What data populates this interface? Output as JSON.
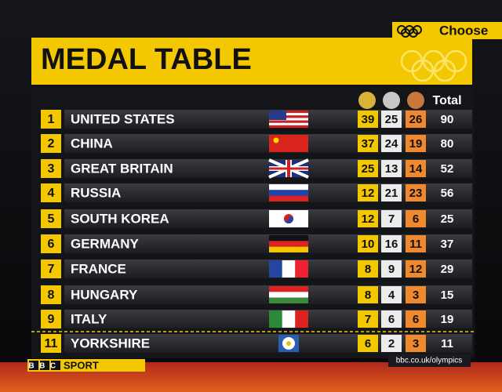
{
  "header": {
    "title": "MEDAL TABLE",
    "total_label": "Total",
    "choose": "Choose"
  },
  "table": {
    "rows": [
      {
        "rank": 1,
        "country": "UNITED STATES",
        "gold": 39,
        "silver": 25,
        "bronze": 26,
        "total": 90
      },
      {
        "rank": 2,
        "country": "CHINA",
        "gold": 37,
        "silver": 24,
        "bronze": 19,
        "total": 80
      },
      {
        "rank": 3,
        "country": "GREAT BRITAIN",
        "gold": 25,
        "silver": 13,
        "bronze": 14,
        "total": 52
      },
      {
        "rank": 4,
        "country": "RUSSIA",
        "gold": 12,
        "silver": 21,
        "bronze": 23,
        "total": 56
      },
      {
        "rank": 5,
        "country": "SOUTH KOREA",
        "gold": 12,
        "silver": 7,
        "bronze": 6,
        "total": 25
      },
      {
        "rank": 6,
        "country": "GERMANY",
        "gold": 10,
        "silver": 16,
        "bronze": 11,
        "total": 37
      },
      {
        "rank": 7,
        "country": "FRANCE",
        "gold": 8,
        "silver": 9,
        "bronze": 12,
        "total": 29
      },
      {
        "rank": 8,
        "country": "HUNGARY",
        "gold": 8,
        "silver": 4,
        "bronze": 3,
        "total": 15
      },
      {
        "rank": 9,
        "country": "ITALY",
        "gold": 7,
        "silver": 6,
        "bronze": 6,
        "total": 19
      },
      {
        "rank": 11,
        "country": "YORKSHIRE",
        "gold": 6,
        "silver": 2,
        "bronze": 3,
        "total": 11
      }
    ]
  },
  "footer": {
    "logo_bbc": "BBC",
    "logo_sport": "SPORT",
    "url": "bbc.co.uk/olympics"
  }
}
